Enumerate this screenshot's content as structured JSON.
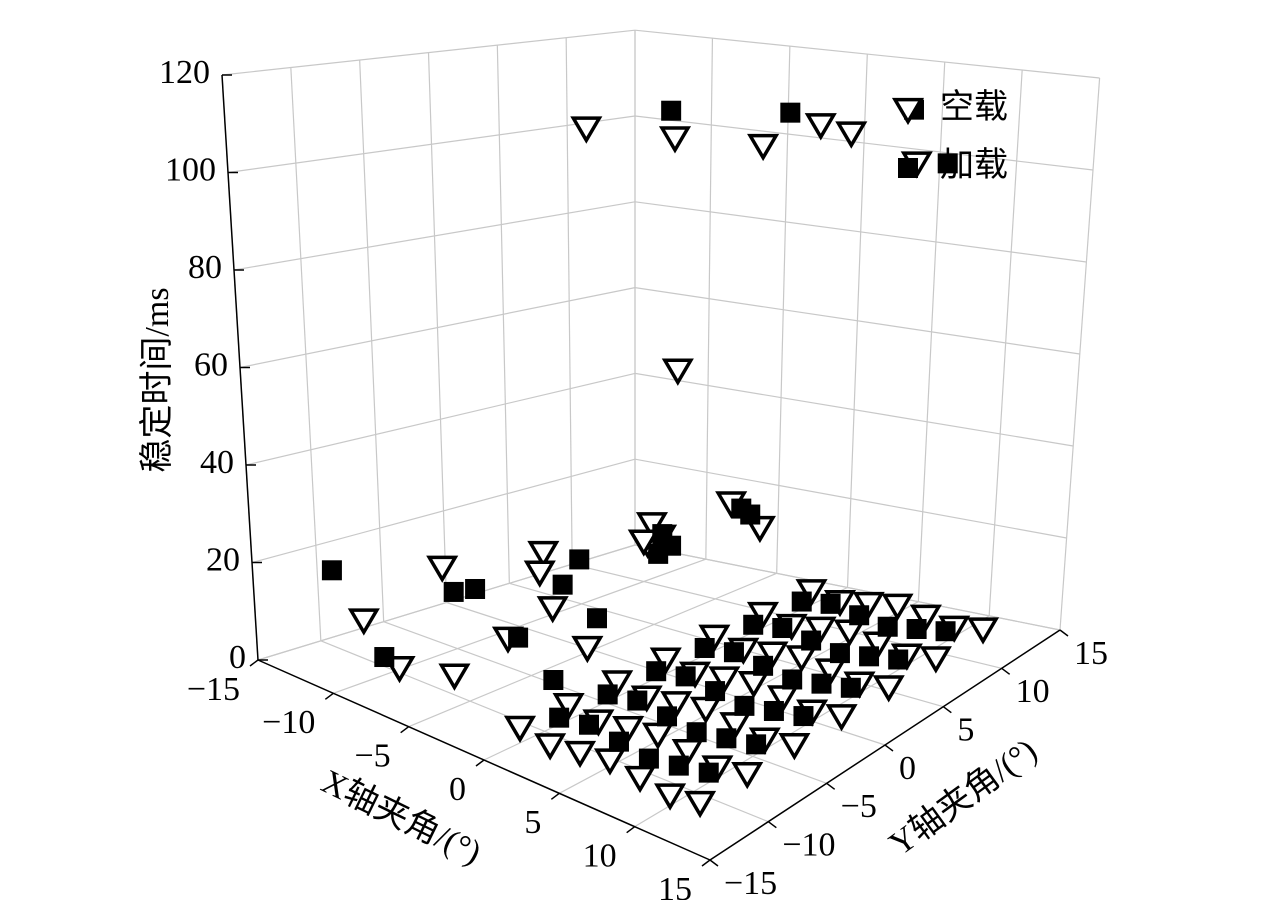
{
  "chart_data": {
    "type": "scatter3d",
    "zlabel": "稳定时间/ms",
    "xlabel": "X轴夹角/(°)",
    "ylabel": "Y轴夹角/(°)",
    "xlim": [
      -15,
      15
    ],
    "ylim": [
      -15,
      15
    ],
    "zlim": [
      0,
      120
    ],
    "xticks": [
      {
        "value": -15,
        "label": "−15"
      },
      {
        "value": -10,
        "label": "−10"
      },
      {
        "value": -5,
        "label": "−5"
      },
      0,
      5,
      10,
      15
    ],
    "yticks": [
      {
        "value": -15,
        "label": "−15"
      },
      {
        "value": -10,
        "label": "−10"
      },
      {
        "value": -5,
        "label": "−5"
      },
      0,
      5,
      10,
      15
    ],
    "zticks": [
      0,
      20,
      40,
      60,
      80,
      100,
      120
    ],
    "grid": true,
    "legend": "upper right",
    "series": [
      {
        "name": "空载",
        "marker": "triangle",
        "color": "#000000",
        "x": [
          0,
          2,
          4,
          6,
          8,
          10,
          12,
          0,
          2,
          4,
          6,
          8,
          10,
          12,
          0,
          2,
          4,
          6,
          8,
          10,
          12,
          0,
          2,
          4,
          6,
          8,
          10,
          12,
          0,
          2,
          4,
          6,
          8,
          10,
          12,
          0,
          2,
          4,
          6,
          8,
          10,
          12,
          0,
          2,
          4,
          6,
          8,
          10,
          12,
          -12,
          -10,
          -8,
          -6,
          -4,
          -2,
          -10,
          -6,
          -2,
          -8,
          -4,
          -12,
          -2,
          -6,
          -10,
          -12,
          -8,
          -4,
          -2,
          0,
          6,
          -6
        ],
        "y": [
          -12,
          -12,
          -12,
          -12,
          -12,
          -12,
          -12,
          -8,
          -8,
          -8,
          -8,
          -8,
          -8,
          -8,
          -4,
          -4,
          -4,
          -4,
          -4,
          -4,
          -4,
          0,
          0,
          0,
          0,
          0,
          0,
          0,
          4,
          4,
          4,
          4,
          4,
          4,
          4,
          8,
          8,
          8,
          8,
          8,
          8,
          8,
          12,
          12,
          12,
          12,
          12,
          12,
          12,
          -10,
          -6,
          -12,
          -2,
          -8,
          2,
          2,
          6,
          -4,
          8,
          10,
          4,
          10,
          -10,
          10,
          8,
          10,
          12,
          14,
          14,
          12,
          8
        ],
        "z": [
          3,
          2,
          3,
          4,
          3,
          2,
          3,
          3,
          2,
          3,
          4,
          3,
          2,
          3,
          3,
          2,
          3,
          4,
          3,
          2,
          3,
          3,
          2,
          3,
          4,
          3,
          2,
          3,
          3,
          2,
          3,
          4,
          3,
          2,
          3,
          3,
          2,
          3,
          4,
          3,
          2,
          3,
          3,
          2,
          3,
          4,
          3,
          2,
          3,
          8,
          18,
          5,
          10,
          12,
          25,
          14,
          20,
          8,
          12,
          22,
          6,
          18,
          4,
          9,
          102,
          101,
          100,
          104,
          103,
          101,
          52
        ]
      },
      {
        "name": "加载",
        "marker": "square",
        "color": "#000000",
        "x": [
          1,
          3,
          5,
          7,
          9,
          11,
          1,
          3,
          5,
          7,
          9,
          11,
          1,
          3,
          5,
          7,
          9,
          11,
          1,
          3,
          5,
          7,
          9,
          11,
          1,
          3,
          5,
          7,
          9,
          11,
          1,
          3,
          5,
          7,
          9,
          11,
          -14,
          -11,
          -9,
          -7,
          -5,
          -3,
          -11,
          -7,
          -3,
          -9,
          -5,
          -1,
          -13,
          -1,
          -10,
          -4,
          4,
          8
        ],
        "y": [
          -10,
          -10,
          -10,
          -10,
          -10,
          -10,
          -6,
          -6,
          -6,
          -6,
          -6,
          -6,
          -2,
          -2,
          -2,
          -2,
          -2,
          -2,
          2,
          2,
          2,
          2,
          2,
          2,
          6,
          6,
          6,
          6,
          6,
          6,
          10,
          10,
          10,
          10,
          10,
          10,
          -10,
          -4,
          -12,
          0,
          -6,
          4,
          6,
          8,
          -2,
          10,
          12,
          8,
          0,
          -8,
          12,
          14,
          14,
          12
        ],
        "z": [
          4,
          5,
          4,
          3,
          4,
          5,
          4,
          5,
          4,
          3,
          4,
          5,
          4,
          5,
          4,
          3,
          4,
          5,
          4,
          5,
          4,
          3,
          4,
          5,
          4,
          5,
          4,
          3,
          4,
          5,
          4,
          5,
          4,
          3,
          4,
          5,
          16,
          10,
          6,
          12,
          9,
          20,
          8,
          15,
          11,
          7,
          18,
          24,
          5,
          7,
          105,
          106,
          110,
          102
        ]
      }
    ]
  }
}
